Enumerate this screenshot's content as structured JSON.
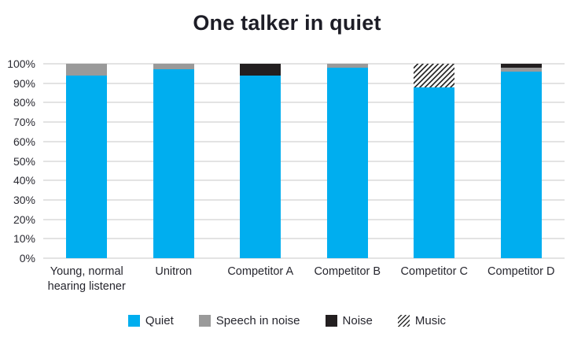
{
  "chart_data": {
    "type": "bar",
    "stacked": true,
    "title": "One talker in quiet",
    "categories": [
      "Young, normal hearing listener",
      "Unitron",
      "Competitor A",
      "Competitor B",
      "Competitor C",
      "Competitor D"
    ],
    "series": [
      {
        "name": "Quiet",
        "style": "solid",
        "color": "#00AEEF",
        "values": [
          94,
          97,
          94,
          98,
          88,
          96
        ]
      },
      {
        "name": "Speech in noise",
        "style": "solid",
        "color": "#9A9A9A",
        "values": [
          6,
          3,
          0,
          2,
          0,
          2
        ]
      },
      {
        "name": "Noise",
        "style": "solid",
        "color": "#231F20",
        "values": [
          0,
          0,
          6,
          0,
          0,
          2
        ]
      },
      {
        "name": "Music",
        "style": "hatch",
        "color": "#2E2E2E",
        "values": [
          0,
          0,
          0,
          0,
          12,
          0
        ]
      }
    ],
    "ylim": [
      0,
      100
    ],
    "ytick_step": 10,
    "ytick_labels": [
      "0%",
      "10%",
      "20%",
      "30%",
      "40%",
      "50%",
      "60%",
      "70%",
      "80%",
      "90%",
      "100%"
    ],
    "grid": true,
    "gridline_color": "#C7C7C7",
    "legend_position": "bottom"
  }
}
